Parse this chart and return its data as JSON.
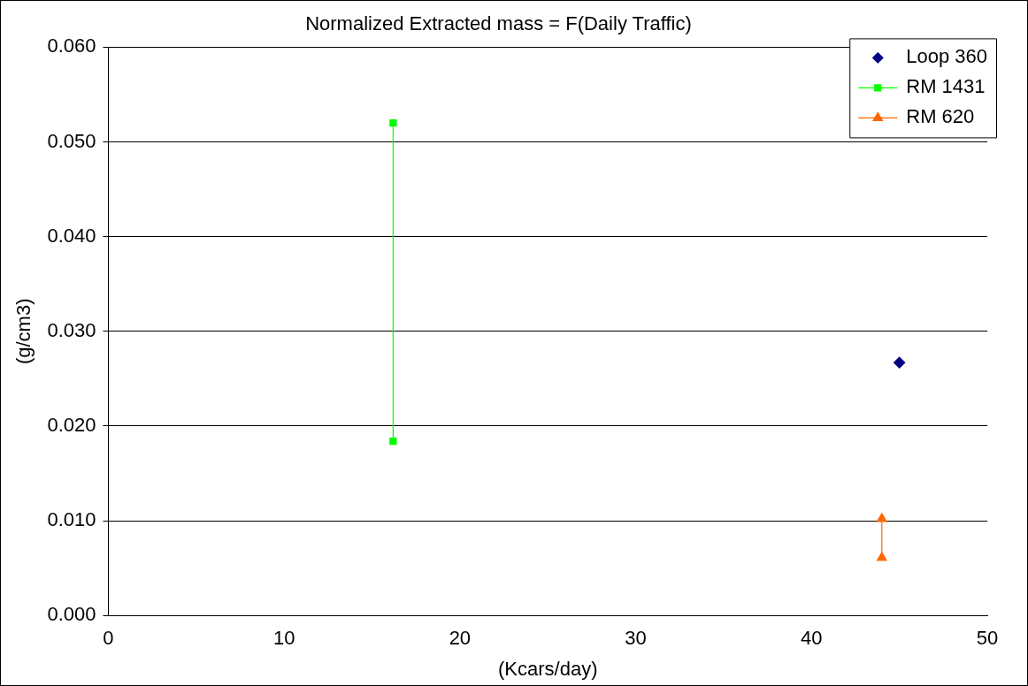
{
  "chart_data": {
    "type": "scatter",
    "title": "Normalized Extracted mass = F(Daily Traffic)",
    "xlabel": "(Kcars/day)",
    "ylabel": "(g/cm3)",
    "xlim": [
      0,
      50
    ],
    "xticks": [
      0,
      10,
      20,
      30,
      40,
      50
    ],
    "ylim": [
      0,
      0.06
    ],
    "yticks": [
      {
        "value": 0,
        "label": "0.000"
      },
      {
        "value": 0.01,
        "label": "0.010"
      },
      {
        "value": 0.02,
        "label": "0.020"
      },
      {
        "value": 0.03,
        "label": "0.030"
      },
      {
        "value": 0.04,
        "label": "0.040"
      },
      {
        "value": 0.05,
        "label": "0.050"
      },
      {
        "value": 0.06,
        "label": "0.060"
      }
    ],
    "grid": "y",
    "legend": "top right",
    "series": [
      {
        "name": "Loop 360",
        "type": "scatter",
        "marker": "diamond",
        "color": "#000080",
        "x": [
          45
        ],
        "values": [
          0.0267
        ]
      },
      {
        "name": "RM 1431",
        "type": "line",
        "marker": "square",
        "color": "#00ff00",
        "x": [
          16.2,
          16.2
        ],
        "values": [
          0.052,
          0.0184
        ]
      },
      {
        "name": "RM 620",
        "type": "line",
        "marker": "triangle",
        "color": "#ff6600",
        "x": [
          44,
          44
        ],
        "values": [
          0.0102,
          0.0061
        ]
      }
    ]
  }
}
